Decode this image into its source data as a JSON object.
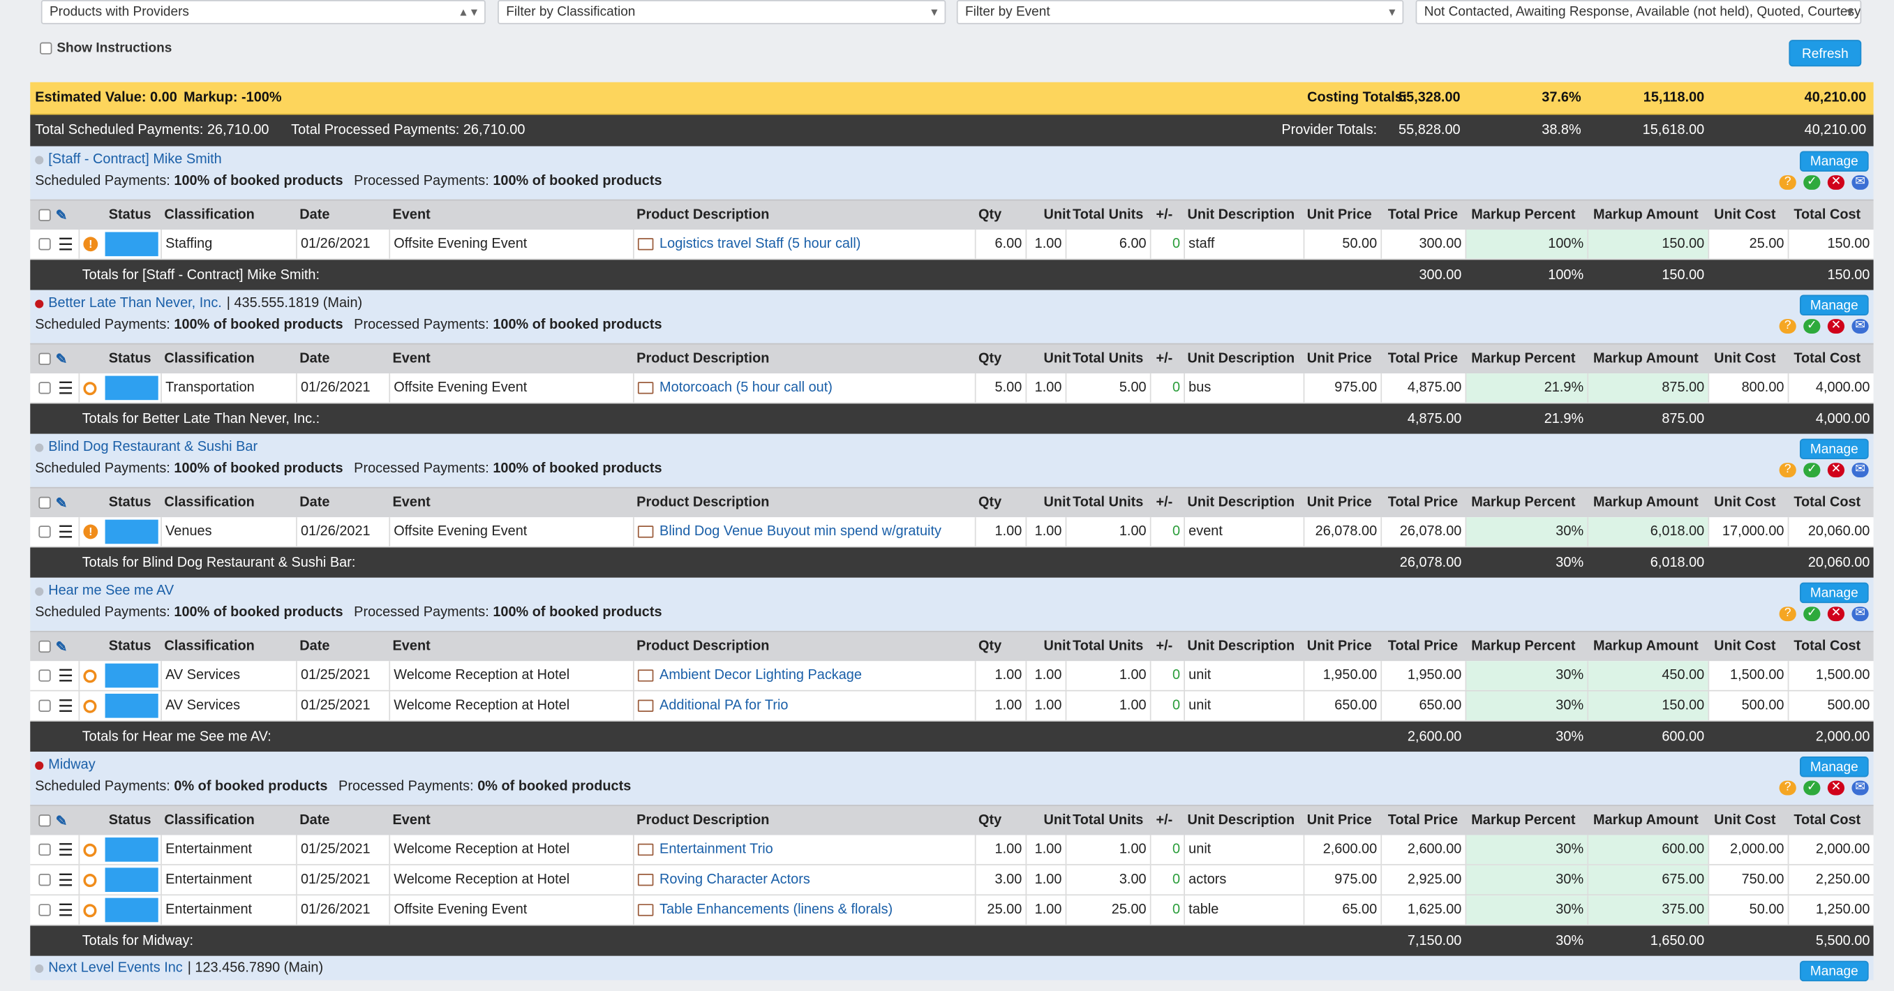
{
  "filters": {
    "view": "Products with Providers",
    "classification_placeholder": "Filter by Classification",
    "event_placeholder": "Filter by Event",
    "status_value": "Not Contacted, Awaiting Response, Available (not held), Quoted, Courtesy"
  },
  "show_instructions": "Show Instructions",
  "refresh_label": "Refresh",
  "summary": {
    "estimated_value": "Estimated Value: 0.00",
    "markup": "Markup: -100%",
    "costing_label": "Costing Totals:",
    "costing": [
      "55,328.00",
      "37.6%",
      "15,118.00",
      "40,210.00"
    ],
    "scheduled": "Total Scheduled Payments: 26,710.00",
    "processed": "Total Processed Payments: 26,710.00",
    "provider_label": "Provider Totals:",
    "provider": [
      "55,828.00",
      "38.8%",
      "15,618.00",
      "40,210.00"
    ]
  },
  "manage_label": "Manage",
  "headers": [
    "Status",
    "Classification",
    "Date",
    "Event",
    "Product Description",
    "Qty",
    "Unit",
    "Total Units",
    "+/-",
    "Unit Description",
    "Unit Price",
    "Total Price",
    "Markup Percent",
    "Markup Amount",
    "Unit Cost",
    "Total Cost"
  ],
  "colors": {
    "accent": "#1f9be6",
    "yellow_bar": "#fdd55c",
    "dark_bar": "#3a3a3a",
    "markup_cell": "#dcf3e6",
    "status_orange": "#f08c1a"
  },
  "providers": [
    {
      "name": "[Staff - Contract] Mike Smith",
      "phone": "",
      "dot": "#b8bec7",
      "scheduled_label": "Scheduled Payments:",
      "scheduled": "100% of booked products",
      "processed_label": "Processed Payments:",
      "processed": "100% of booked products",
      "rows": [
        {
          "status": "!",
          "classification": "Staffing",
          "date": "01/26/2021",
          "event": "Offsite Evening Event",
          "product": "Logistics travel Staff (5 hour call)",
          "qty": "6.00",
          "unit": "1.00",
          "total_units": "6.00",
          "pm": "0",
          "unit_desc": "staff",
          "unit_price": "50.00",
          "total_price": "300.00",
          "markup_pct": "100%",
          "markup_amt": "150.00",
          "unit_cost": "25.00",
          "total_cost": "150.00"
        }
      ],
      "totals_label": "Totals for [Staff - Contract] Mike Smith:",
      "totals": [
        "300.00",
        "100%",
        "150.00",
        "150.00"
      ]
    },
    {
      "name": "Better Late Than Never, Inc.",
      "phone": "| 435.555.1819 (Main)",
      "dot": "#c4161c",
      "scheduled_label": "Scheduled Payments:",
      "scheduled": "100% of booked products",
      "processed_label": "Processed Payments:",
      "processed": "100% of booked products",
      "rows": [
        {
          "status": "o",
          "classification": "Transportation",
          "date": "01/26/2021",
          "event": "Offsite Evening Event",
          "product": "Motorcoach (5 hour call out)",
          "qty": "5.00",
          "unit": "1.00",
          "total_units": "5.00",
          "pm": "0",
          "unit_desc": "bus",
          "unit_price": "975.00",
          "total_price": "4,875.00",
          "markup_pct": "21.9%",
          "markup_amt": "875.00",
          "unit_cost": "800.00",
          "total_cost": "4,000.00"
        }
      ],
      "totals_label": "Totals for Better Late Than Never, Inc.:",
      "totals": [
        "4,875.00",
        "21.9%",
        "875.00",
        "4,000.00"
      ]
    },
    {
      "name": "Blind Dog Restaurant & Sushi Bar",
      "phone": "",
      "dot": "#b8bec7",
      "scheduled_label": "Scheduled Payments:",
      "scheduled": "100% of booked products",
      "processed_label": "Processed Payments:",
      "processed": "100% of booked products",
      "rows": [
        {
          "status": "!",
          "classification": "Venues",
          "date": "01/26/2021",
          "event": "Offsite Evening Event",
          "product": "Blind Dog Venue Buyout min spend w/gratuity",
          "qty": "1.00",
          "unit": "1.00",
          "total_units": "1.00",
          "pm": "0",
          "unit_desc": "event",
          "unit_price": "26,078.00",
          "total_price": "26,078.00",
          "markup_pct": "30%",
          "markup_amt": "6,018.00",
          "unit_cost": "17,000.00",
          "total_cost": "20,060.00"
        }
      ],
      "totals_label": "Totals for Blind Dog Restaurant & Sushi Bar:",
      "totals": [
        "26,078.00",
        "30%",
        "6,018.00",
        "20,060.00"
      ]
    },
    {
      "name": "Hear me See me AV",
      "phone": "",
      "dot": "#b8bec7",
      "scheduled_label": "Scheduled Payments:",
      "scheduled": "100% of booked products",
      "processed_label": "Processed Payments:",
      "processed": "100% of booked products",
      "rows": [
        {
          "status": "o",
          "classification": "AV Services",
          "date": "01/25/2021",
          "event": "Welcome Reception at Hotel",
          "product": "Ambient Decor Lighting Package",
          "qty": "1.00",
          "unit": "1.00",
          "total_units": "1.00",
          "pm": "0",
          "unit_desc": "unit",
          "unit_price": "1,950.00",
          "total_price": "1,950.00",
          "markup_pct": "30%",
          "markup_amt": "450.00",
          "unit_cost": "1,500.00",
          "total_cost": "1,500.00"
        },
        {
          "status": "o",
          "classification": "AV Services",
          "date": "01/25/2021",
          "event": "Welcome Reception at Hotel",
          "product": "Additional PA for Trio",
          "qty": "1.00",
          "unit": "1.00",
          "total_units": "1.00",
          "pm": "0",
          "unit_desc": "unit",
          "unit_price": "650.00",
          "total_price": "650.00",
          "markup_pct": "30%",
          "markup_amt": "150.00",
          "unit_cost": "500.00",
          "total_cost": "500.00"
        }
      ],
      "totals_label": "Totals for Hear me See me AV:",
      "totals": [
        "2,600.00",
        "30%",
        "600.00",
        "2,000.00"
      ]
    },
    {
      "name": "Midway",
      "phone": "",
      "dot": "#c4161c",
      "scheduled_label": "Scheduled Payments:",
      "scheduled": "0% of booked products",
      "processed_label": "Processed Payments:",
      "processed": "0% of booked products",
      "rows": [
        {
          "status": "o",
          "classification": "Entertainment",
          "date": "01/25/2021",
          "event": "Welcome Reception at Hotel",
          "product": "Entertainment Trio",
          "qty": "1.00",
          "unit": "1.00",
          "total_units": "1.00",
          "pm": "0",
          "unit_desc": "unit",
          "unit_price": "2,600.00",
          "total_price": "2,600.00",
          "markup_pct": "30%",
          "markup_amt": "600.00",
          "unit_cost": "2,000.00",
          "total_cost": "2,000.00"
        },
        {
          "status": "o",
          "classification": "Entertainment",
          "date": "01/25/2021",
          "event": "Welcome Reception at Hotel",
          "product": "Roving Character Actors",
          "qty": "3.00",
          "unit": "1.00",
          "total_units": "3.00",
          "pm": "0",
          "unit_desc": "actors",
          "unit_price": "975.00",
          "total_price": "2,925.00",
          "markup_pct": "30%",
          "markup_amt": "675.00",
          "unit_cost": "750.00",
          "total_cost": "2,250.00"
        },
        {
          "status": "o",
          "classification": "Entertainment",
          "date": "01/26/2021",
          "event": "Offsite Evening Event",
          "product": "Table Enhancements (linens & florals)",
          "qty": "25.00",
          "unit": "1.00",
          "total_units": "25.00",
          "pm": "0",
          "unit_desc": "table",
          "unit_price": "65.00",
          "total_price": "1,625.00",
          "markup_pct": "30%",
          "markup_amt": "375.00",
          "unit_cost": "50.00",
          "total_cost": "1,250.00"
        }
      ],
      "totals_label": "Totals for Midway:",
      "totals": [
        "7,150.00",
        "30%",
        "1,650.00",
        "5,500.00"
      ]
    }
  ],
  "next_provider": {
    "name": "Next Level Events Inc",
    "phone": "| 123.456.7890 (Main)",
    "dot": "#b8bec7"
  }
}
